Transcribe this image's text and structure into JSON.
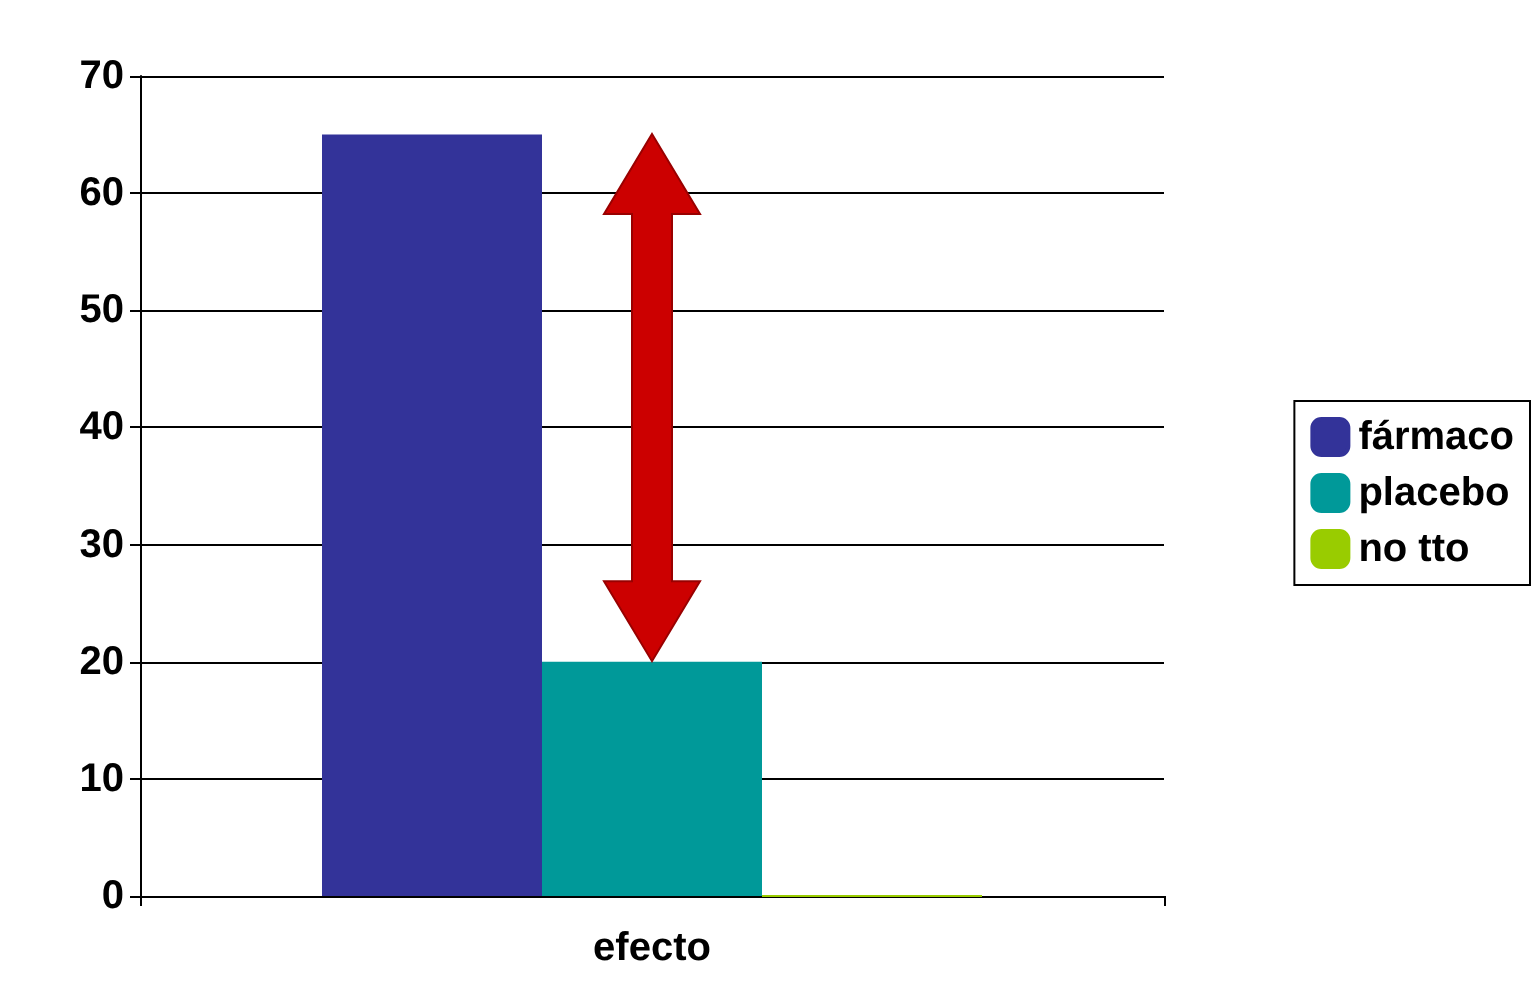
{
  "chart_data": {
    "type": "bar",
    "categories": [
      "efecto"
    ],
    "series": [
      {
        "name": "fármaco",
        "color": "#333399",
        "values": [
          65
        ]
      },
      {
        "name": "placebo",
        "color": "#009999",
        "values": [
          20
        ]
      },
      {
        "name": "no tto",
        "color": "#99cc00",
        "values": [
          0
        ]
      }
    ],
    "ylim": [
      0,
      70
    ],
    "yticks": [
      0,
      10,
      20,
      30,
      40,
      50,
      60,
      70
    ],
    "grid": "y",
    "legend": "right"
  }
}
